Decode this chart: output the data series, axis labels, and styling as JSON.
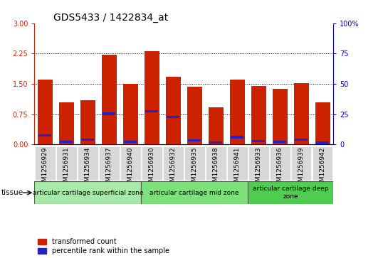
{
  "title": "GDS5433 / 1422834_at",
  "samples": [
    "GSM1256929",
    "GSM1256931",
    "GSM1256934",
    "GSM1256937",
    "GSM1256940",
    "GSM1256930",
    "GSM1256932",
    "GSM1256935",
    "GSM1256938",
    "GSM1256941",
    "GSM1256933",
    "GSM1256936",
    "GSM1256939",
    "GSM1256942"
  ],
  "red_values": [
    1.6,
    1.05,
    1.1,
    2.22,
    1.5,
    2.3,
    1.68,
    1.43,
    0.92,
    1.6,
    1.45,
    1.38,
    1.52,
    1.05
  ],
  "blue_values": [
    0.22,
    0.07,
    0.12,
    0.76,
    0.07,
    0.82,
    0.68,
    0.1,
    0.05,
    0.18,
    0.08,
    0.07,
    0.12,
    0.04
  ],
  "ylim_left": [
    0,
    3
  ],
  "ylim_right": [
    0,
    100
  ],
  "yticks_left": [
    0,
    0.75,
    1.5,
    2.25,
    3
  ],
  "yticks_right": [
    0,
    25,
    50,
    75,
    100
  ],
  "grid_lines": [
    0.75,
    1.5,
    2.25
  ],
  "bar_color": "#cc2200",
  "blue_color": "#2222cc",
  "cell_bg": "#d8d8d8",
  "zone_colors": [
    "#a8e8a8",
    "#7de07d",
    "#50cc50"
  ],
  "zones": [
    {
      "label": "articular cartilage superficial zone",
      "start": 0,
      "end": 5
    },
    {
      "label": "articular cartilage mid zone",
      "start": 5,
      "end": 10
    },
    {
      "label": "articular cartilage deep\nzone",
      "start": 10,
      "end": 14
    }
  ],
  "legend_red": "transformed count",
  "legend_blue": "percentile rank within the sample",
  "tissue_label": "tissue",
  "left_axis_color": "#cc2200",
  "right_axis_color": "#0000cc",
  "title_fontsize": 10,
  "tick_fontsize": 7,
  "label_fontsize": 6.5,
  "zone_fontsize": 6.5
}
